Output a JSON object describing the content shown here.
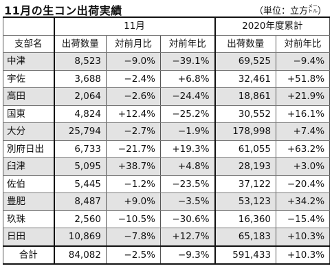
{
  "title": "11月の生コン出荷実績",
  "unit": {
    "prefix": "（単位：立方",
    "sup_top": "メー",
    "sup_bottom": "トル",
    "suffix": "）"
  },
  "groups": {
    "month": "11月",
    "year": "2020年度累計"
  },
  "columns": {
    "region": "支部名",
    "m_ship": "出荷数量",
    "m_mom": "対前月比",
    "m_yoy": "対前年比",
    "y_ship": "出荷数量",
    "y_yoy": "対前年比"
  },
  "rows": [
    {
      "region": "中津",
      "m_ship": "8,523",
      "m_mom": "−9.0%",
      "m_yoy": "−39.1%",
      "y_ship": "69,525",
      "y_yoy": "−9.4%"
    },
    {
      "region": "宇佐",
      "m_ship": "3,688",
      "m_mom": "−2.4%",
      "m_yoy": "+6.8%",
      "y_ship": "32,461",
      "y_yoy": "+51.8%"
    },
    {
      "region": "高田",
      "m_ship": "2,064",
      "m_mom": "−2.6%",
      "m_yoy": "−24.4%",
      "y_ship": "18,861",
      "y_yoy": "+21.9%"
    },
    {
      "region": "国東",
      "m_ship": "4,824",
      "m_mom": "+12.4%",
      "m_yoy": "−25.2%",
      "y_ship": "30,552",
      "y_yoy": "+16.1%"
    },
    {
      "region": "大分",
      "m_ship": "25,794",
      "m_mom": "−2.7%",
      "m_yoy": "−1.9%",
      "y_ship": "178,998",
      "y_yoy": "+7.4%"
    },
    {
      "region": "別府日出",
      "m_ship": "6,733",
      "m_mom": "−21.7%",
      "m_yoy": "+19.3%",
      "y_ship": "61,055",
      "y_yoy": "+63.2%"
    },
    {
      "region": "臼津",
      "m_ship": "5,095",
      "m_mom": "+38.7%",
      "m_yoy": "+4.8%",
      "y_ship": "28,193",
      "y_yoy": "+3.0%"
    },
    {
      "region": "佐伯",
      "m_ship": "5,445",
      "m_mom": "−1.2%",
      "m_yoy": "−23.5%",
      "y_ship": "37,122",
      "y_yoy": "−20.4%"
    },
    {
      "region": "豊肥",
      "m_ship": "8,487",
      "m_mom": "+9.0%",
      "m_yoy": "−3.5%",
      "y_ship": "53,123",
      "y_yoy": "+34.2%"
    },
    {
      "region": "玖珠",
      "m_ship": "2,560",
      "m_mom": "−10.5%",
      "m_yoy": "−30.6%",
      "y_ship": "16,360",
      "y_yoy": "−15.4%"
    },
    {
      "region": "日田",
      "m_ship": "10,869",
      "m_mom": "−7.8%",
      "m_yoy": "+12.7%",
      "y_ship": "65,183",
      "y_yoy": "+10.3%"
    }
  ],
  "total": {
    "region": "合計",
    "m_ship": "84,082",
    "m_mom": "−2.5%",
    "m_yoy": "−9.3%",
    "y_ship": "591,433",
    "y_yoy": "+10.3%"
  }
}
